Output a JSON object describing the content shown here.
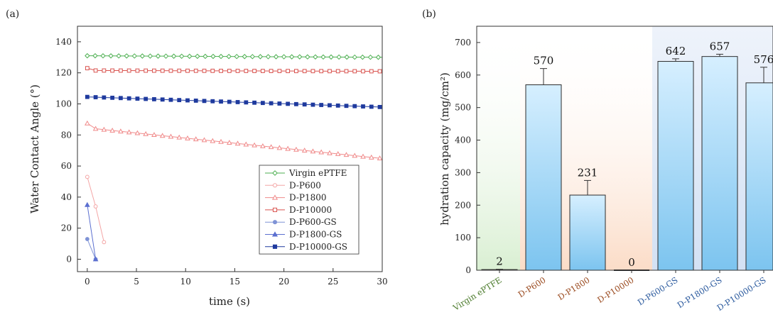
{
  "panels": {
    "a": {
      "label": "(a)"
    },
    "b": {
      "label": "(b)"
    }
  },
  "colors": {
    "virgin": "#4caf50",
    "p600": "#f4a6a6",
    "p1800": "#f08a8a",
    "p10000": "#d9534f",
    "p600gs": "#7f93d6",
    "p1800gs": "#5b6fd0",
    "p10000gs": "#1f3a9e",
    "bar_fill": "#a9d8f5",
    "bar_stroke": "#2c2c2c",
    "bg_green": "#e3f3df",
    "bg_orange": "#fbe3d2",
    "bg_blue": "#dbe6f6",
    "label_green": "#4a7a2a",
    "label_brown": "#9a4a1f",
    "label_blue": "#2b5a9e"
  },
  "chart_data": [
    {
      "type": "line",
      "xlabel": "time (s)",
      "ylabel": "Water Contact Angle (°)",
      "xlim": [
        -1,
        30
      ],
      "ylim": [
        -8,
        150
      ],
      "xticks": [
        0,
        5,
        10,
        15,
        20,
        25,
        30
      ],
      "yticks": [
        0,
        20,
        40,
        60,
        80,
        100,
        120,
        140
      ],
      "legend_position": "bottom-right",
      "series": [
        {
          "name": "Virgin ePTFE",
          "key": "virgin",
          "marker": "diamond-open",
          "x_start": 0,
          "x_end": 30,
          "step": 0.8,
          "y_start": 131,
          "y_end": 130
        },
        {
          "name": "D-P600",
          "key": "p600",
          "marker": "circle-open",
          "points": [
            [
              0,
              53
            ],
            [
              0.85,
              34
            ],
            [
              1.7,
              11
            ]
          ]
        },
        {
          "name": "D-P1800",
          "key": "p1800",
          "marker": "triangle-open",
          "x_start": 0,
          "x_end": 30,
          "step": 0.85,
          "y_start": 87.5,
          "y_mid": 84,
          "y_end": 65
        },
        {
          "name": "D-P10000",
          "key": "p10000",
          "marker": "square-open",
          "x_start": 0,
          "x_end": 30,
          "step": 0.85,
          "y_start": 123,
          "y_mid": 121.5,
          "y_end": 121
        },
        {
          "name": "D-P600-GS",
          "key": "p600gs",
          "marker": "circle-filled",
          "points": [
            [
              0,
              13
            ],
            [
              0.85,
              0
            ]
          ]
        },
        {
          "name": "D-P1800-GS",
          "key": "p1800gs",
          "marker": "triangle-filled",
          "points": [
            [
              0,
              35
            ],
            [
              0.85,
              0
            ]
          ]
        },
        {
          "name": "D-P10000-GS",
          "key": "p10000gs",
          "marker": "square-filled",
          "x_start": 0,
          "x_end": 30,
          "step": 0.85,
          "y_start": 104.5,
          "y_end": 98
        }
      ]
    },
    {
      "type": "bar",
      "ylabel": "hydration capacity (mg/cm²)",
      "ylim": [
        0,
        750
      ],
      "yticks": [
        0,
        100,
        200,
        300,
        400,
        500,
        600,
        700
      ],
      "categories": [
        "Virgin ePTFE",
        "D-P600",
        "D-P1800",
        "D-P10000",
        "D-P600-GS",
        "D-P1800-GS",
        "D-P10000-GS"
      ],
      "values": [
        2,
        570,
        231,
        0,
        642,
        657,
        576
      ],
      "errors": [
        1,
        50,
        45,
        0,
        8,
        7,
        48
      ],
      "value_labels": [
        "2",
        "570",
        "231",
        "0",
        "642",
        "657",
        "576"
      ],
      "groups": [
        {
          "name": "virgin",
          "from": 0,
          "to": 0,
          "bg": "bg_green",
          "label_color": "label_green"
        },
        {
          "name": "no-gs",
          "from": 1,
          "to": 3,
          "bg": "bg_orange",
          "label_color": "label_brown"
        },
        {
          "name": "gs",
          "from": 4,
          "to": 6,
          "bg": "bg_blue",
          "label_color": "label_blue"
        }
      ]
    }
  ]
}
